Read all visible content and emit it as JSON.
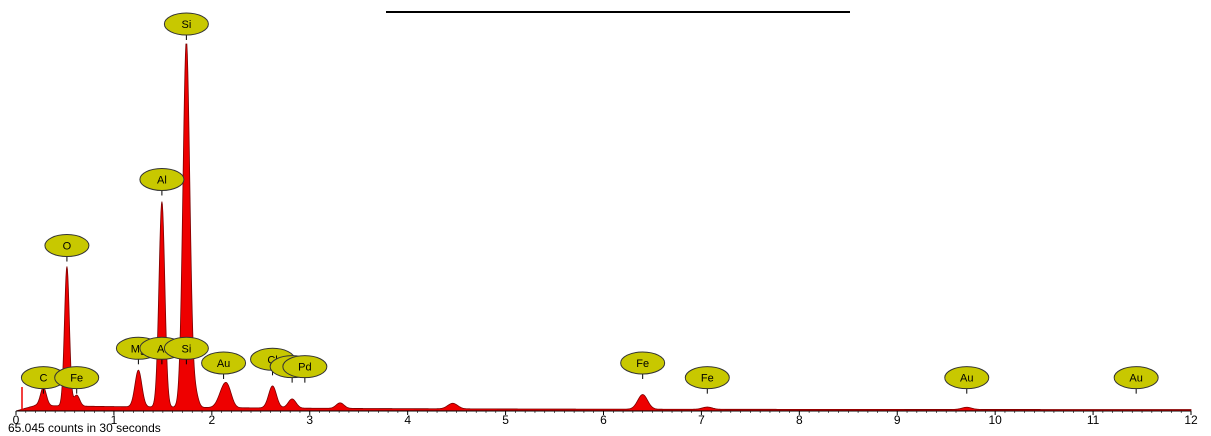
{
  "chart_data": {
    "type": "area",
    "title": "",
    "xlabel": "",
    "ylabel": "",
    "xlim": [
      0,
      12
    ],
    "ylim": [
      0,
      1
    ],
    "xticks": [
      "0",
      "1",
      "2",
      "3",
      "4",
      "5",
      "6",
      "7",
      "8",
      "9",
      "10",
      "11",
      "12"
    ],
    "fill_color": "#ee0000",
    "line_color": "#7a0000",
    "label_color": "#c8c800",
    "peaks": [
      {
        "energy": 0.28,
        "height": 0.05,
        "width": 0.03
      },
      {
        "energy": 0.52,
        "height": 0.38,
        "width": 0.025
      },
      {
        "energy": 0.62,
        "height": 0.03,
        "width": 0.03
      },
      {
        "energy": 1.25,
        "height": 0.1,
        "width": 0.035
      },
      {
        "energy": 1.49,
        "height": 0.56,
        "width": 0.03
      },
      {
        "energy": 1.74,
        "height": 1.0,
        "width": 0.035
      },
      {
        "energy": 1.83,
        "height": 0.04,
        "width": 0.03
      },
      {
        "energy": 2.12,
        "height": 0.05,
        "width": 0.05
      },
      {
        "energy": 2.17,
        "height": 0.03,
        "width": 0.04
      },
      {
        "energy": 2.62,
        "height": 0.06,
        "width": 0.04
      },
      {
        "energy": 2.82,
        "height": 0.025,
        "width": 0.04
      },
      {
        "energy": 3.31,
        "height": 0.015,
        "width": 0.04
      },
      {
        "energy": 4.46,
        "height": 0.015,
        "width": 0.05
      },
      {
        "energy": 6.4,
        "height": 0.04,
        "width": 0.05
      },
      {
        "energy": 7.06,
        "height": 0.006,
        "width": 0.05
      },
      {
        "energy": 9.71,
        "height": 0.006,
        "width": 0.05
      }
    ],
    "element_labels": [
      {
        "text": "Si",
        "energy": 1.74,
        "level": 1.0
      },
      {
        "text": "Al",
        "energy": 1.49,
        "level": 0.56
      },
      {
        "text": "O",
        "energy": 0.52,
        "level": 0.38
      },
      {
        "text": "Mg",
        "energy": 1.25,
        "level": 0.1
      },
      {
        "text": "Al",
        "energy": 1.49,
        "level": 0.1
      },
      {
        "text": "Si",
        "energy": 1.74,
        "level": 0.1
      },
      {
        "text": "Cl",
        "energy": 2.62,
        "level": 0.07
      },
      {
        "text": "Au",
        "energy": 2.12,
        "level": 0.06
      },
      {
        "text": "P",
        "energy": 2.82,
        "level": 0.05
      },
      {
        "text": "Pd",
        "energy": 2.95,
        "level": 0.05
      },
      {
        "text": "C",
        "energy": 0.28,
        "level": 0.02
      },
      {
        "text": "Fe",
        "energy": 0.62,
        "level": 0.02
      },
      {
        "text": "Fe",
        "energy": 6.4,
        "level": 0.06
      },
      {
        "text": "Fe",
        "energy": 7.06,
        "level": 0.02
      },
      {
        "text": "Au",
        "energy": 9.71,
        "level": 0.02
      },
      {
        "text": "Au",
        "energy": 11.44,
        "level": 0.02
      }
    ]
  },
  "footer": {
    "counts_text": "65.045 counts in 30 seconds"
  }
}
